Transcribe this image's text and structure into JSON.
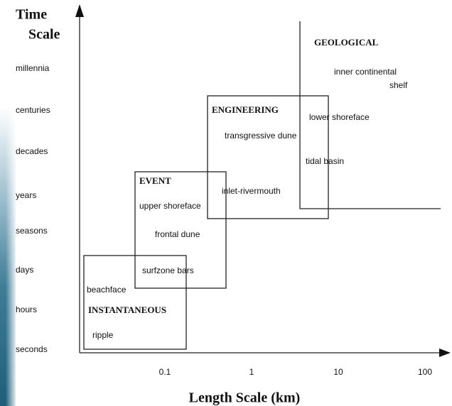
{
  "axes": {
    "y_title": [
      "Time",
      "Scale"
    ],
    "x_title": "Length Scale (km)",
    "y_categories": [
      "millennia",
      "centuries",
      "decades",
      "years",
      "seasons",
      "days",
      "hours",
      "seconds"
    ],
    "x_ticks": [
      "0.1",
      "1",
      "10",
      "100"
    ]
  },
  "regions": [
    {
      "label": "GEOLOGICAL",
      "features": [
        "inner continental",
        "shelf"
      ]
    },
    {
      "label": "ENGINEERING",
      "features": [
        "lower shoreface",
        "transgressive dune",
        "tidal basin",
        "inlet-rivermouth"
      ]
    },
    {
      "label": "EVENT",
      "features": [
        "upper shoreface",
        "frontal dune",
        "surfzone bars"
      ]
    },
    {
      "label": "INSTANTANEOUS",
      "features": [
        "beachface",
        "ripple"
      ]
    }
  ]
}
